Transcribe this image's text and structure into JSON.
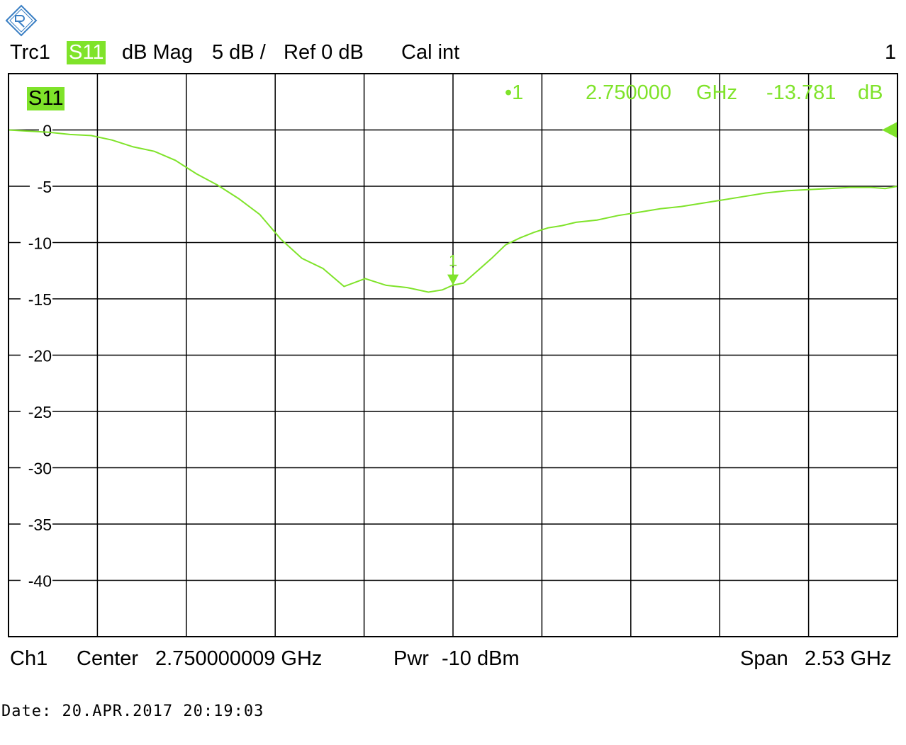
{
  "header": {
    "trace": "Trc1",
    "param": "S11",
    "format": "dB Mag",
    "scale": "5 dB /",
    "ref": "Ref 0 dB",
    "cal": "Cal int",
    "channel_no": "1"
  },
  "marker": {
    "label": "•1",
    "freq": "2.750000",
    "freq_unit": "GHz",
    "value": "-13.781",
    "value_unit": "dB",
    "arrow_label": "1"
  },
  "trace_tag": "S11",
  "footer": {
    "channel": "Ch1",
    "center_label": "Center",
    "center_value": "2.750000009 GHz",
    "power_label": "Pwr",
    "power_value": "-10 dBm",
    "span_label": "Span",
    "span_value": "2.53 GHz"
  },
  "date_line": "Date: 20.APR.2017  20:19:03",
  "colors": {
    "trace": "#7fe32a",
    "grid": "#000000",
    "background": "#ffffff"
  },
  "chart_data": {
    "type": "line",
    "title": "",
    "xlabel": "",
    "ylabel": "",
    "x_unit": "GHz",
    "xlim": [
      1.485,
      4.015
    ],
    "ylim": [
      -45,
      5
    ],
    "y_ticks": [
      0,
      -5,
      -10,
      -15,
      -20,
      -25,
      -30,
      -35,
      -40
    ],
    "y_tick_labels": [
      "0",
      "-5",
      "-10",
      "-15",
      "-20",
      "-25",
      "-30",
      "-35",
      "-40"
    ],
    "grid": true,
    "reference_level_db": 0,
    "series": [
      {
        "x": [
          1.485,
          1.54,
          1.6,
          1.66,
          1.72,
          1.78,
          1.84,
          1.9,
          1.96,
          2.02,
          2.08,
          2.14,
          2.2,
          2.26,
          2.32,
          2.38,
          2.44,
          2.5,
          2.56,
          2.62,
          2.68,
          2.72,
          2.75,
          2.78,
          2.82,
          2.86,
          2.9,
          2.94,
          2.98,
          3.02,
          3.06,
          3.1,
          3.16,
          3.22,
          3.28,
          3.34,
          3.4,
          3.46,
          3.52,
          3.58,
          3.64,
          3.7,
          3.76,
          3.82,
          3.88,
          3.94,
          3.98,
          4.015
        ],
        "y": [
          0.0,
          -0.1,
          -0.2,
          -0.4,
          -0.5,
          -0.9,
          -1.5,
          -1.9,
          -2.7,
          -3.9,
          -4.9,
          -6.1,
          -7.5,
          -9.7,
          -11.4,
          -12.3,
          -13.9,
          -13.2,
          -13.8,
          -14.0,
          -14.4,
          -14.2,
          -13.78,
          -13.6,
          -12.5,
          -11.4,
          -10.2,
          -9.6,
          -9.1,
          -8.7,
          -8.5,
          -8.2,
          -8.0,
          -7.6,
          -7.3,
          -7.0,
          -6.8,
          -6.5,
          -6.2,
          -5.9,
          -5.6,
          -5.4,
          -5.3,
          -5.2,
          -5.1,
          -5.1,
          -5.2,
          -5.0
        ]
      }
    ],
    "markers": [
      {
        "id": "1",
        "x": 2.75,
        "y": -13.781
      }
    ]
  }
}
